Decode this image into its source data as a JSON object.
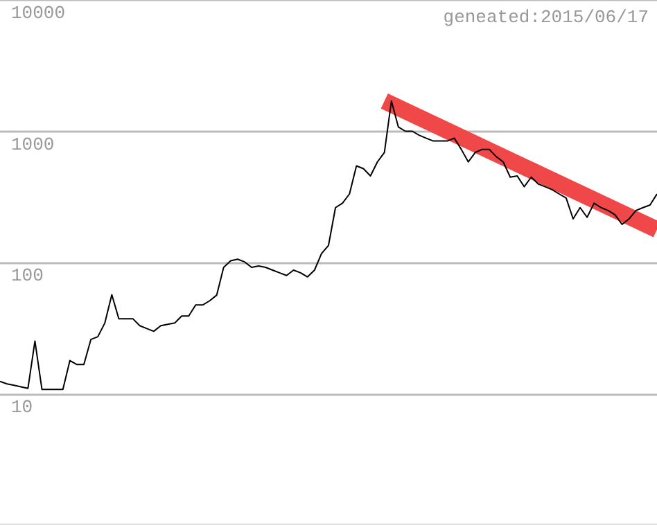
{
  "chart_data": {
    "type": "line",
    "annotations": [
      "geneated:2015/06/17"
    ],
    "categories": [
      null,
      null,
      null,
      null,
      null,
      null,
      null,
      null,
      null,
      null,
      null,
      null,
      null,
      null,
      null,
      null,
      null,
      null,
      null,
      null,
      null,
      null,
      null,
      null,
      null,
      null,
      null,
      null,
      null,
      null,
      null,
      null,
      null,
      null,
      null,
      null,
      null,
      null,
      null,
      null,
      null,
      null,
      null,
      null,
      null,
      null,
      null,
      null,
      null,
      null,
      null,
      null,
      null,
      null,
      null,
      null,
      null,
      null,
      null,
      null,
      null,
      null,
      null,
      null,
      null,
      null,
      null,
      null,
      null,
      null,
      null,
      null,
      null,
      null,
      null,
      null,
      null,
      null,
      null,
      null,
      null,
      null,
      null,
      null,
      null,
      null,
      null,
      null,
      null,
      null,
      null,
      null,
      null,
      null,
      null
    ],
    "series": [
      {
        "color": "#f04848",
        "values": [
          null,
          null,
          null,
          null,
          null,
          null,
          null,
          null,
          null,
          null,
          null,
          null,
          null,
          null,
          null,
          null,
          null,
          null,
          null,
          null,
          null,
          null,
          null,
          null,
          null,
          null,
          null,
          null,
          null,
          null,
          null,
          null,
          null,
          null,
          null,
          null,
          null,
          null,
          null,
          null,
          null,
          null,
          null,
          null,
          null,
          null,
          null,
          null,
          null,
          null,
          null,
          null,
          null,
          null,
          null,
          1700,
          null,
          null,
          null,
          null,
          null,
          null,
          null,
          null,
          null,
          null,
          null,
          null,
          null,
          null,
          null,
          null,
          null,
          null,
          null,
          null,
          null,
          null,
          null,
          null,
          null,
          null,
          null,
          null,
          null,
          null,
          null,
          null,
          null,
          null,
          null,
          null,
          null,
          null,
          178
        ]
      },
      {
        "color": "#000000",
        "values": [
          12.4,
          11.9,
          11.6,
          11.3,
          11.0,
          25.2,
          10.8,
          10.8,
          10.8,
          10.8,
          17.9,
          16.7,
          16.7,
          25.9,
          27.2,
          34.6,
          56.9,
          37.3,
          37.3,
          37.3,
          33.0,
          31.4,
          29.9,
          33,
          33.8,
          34.6,
          39.1,
          39.1,
          47.5,
          47.5,
          51.1,
          56.4,
          91.8,
          103,
          106,
          101,
          91.8,
          94,
          91.8,
          87.5,
          83.5,
          79.6,
          87.5,
          83.5,
          77.7,
          87.5,
          117,
          135,
          262,
          283,
          333,
          545,
          519,
          457,
          584,
          690,
          1700,
          1077,
          1000,
          1000,
          931,
          885,
          843,
          843,
          843,
          885,
          728,
          584,
          690,
          728,
          728,
          641,
          584,
          447,
          457,
          378,
          447,
          397,
          378,
          359,
          333,
          310,
          215,
          262,
          221,
          283,
          262,
          249,
          231,
          195,
          215,
          249,
          262,
          274,
          333
        ]
      }
    ],
    "log": true,
    "ylim": [
      1,
      10000
    ],
    "yticks": [
      10,
      100,
      1000,
      10000
    ],
    "grid": "y",
    "line_style": "solid",
    "tick_labels": "y"
  }
}
